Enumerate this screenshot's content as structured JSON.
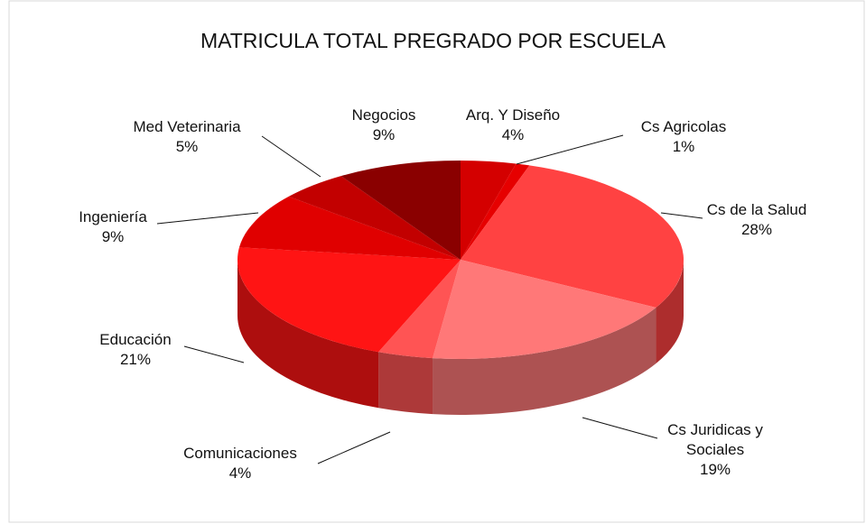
{
  "chart_data": {
    "type": "pie",
    "title": "MATRICULA TOTAL PREGRADO POR ESCUELA",
    "categories": [
      "Arq. Y Diseño",
      "Cs Agricolas",
      "Cs de la Salud",
      "Cs Juridicas y Sociales",
      "Comunicaciones",
      "Educación",
      "Ingeniería",
      "Med Veterinaria",
      "Negocios"
    ],
    "values": [
      4,
      1,
      28,
      19,
      4,
      21,
      9,
      5,
      9
    ],
    "value_labels": [
      "4%",
      "1%",
      "28%",
      "19%",
      "4%",
      "21%",
      "9%",
      "5%",
      "9%"
    ],
    "colors": [
      "#d40000",
      "#e60000",
      "#ff4242",
      "#ff7878",
      "#ff5454",
      "#ff1414",
      "#e00000",
      "#c20000",
      "#8a0000"
    ]
  }
}
